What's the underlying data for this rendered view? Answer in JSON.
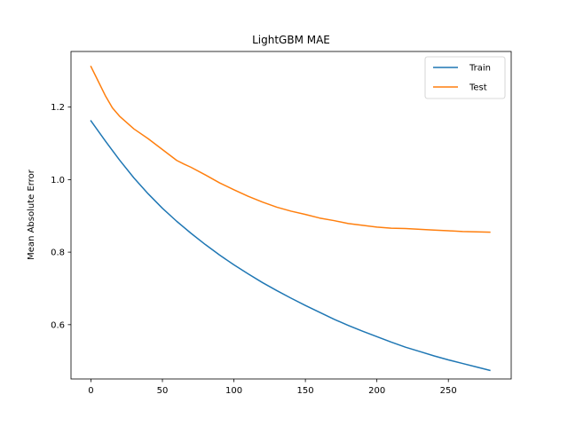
{
  "chart_data": {
    "type": "line",
    "title": "LightGBM MAE",
    "xlabel": "",
    "ylabel": "Mean Absolute Error",
    "xlim": [
      -13.95,
      293.95
    ],
    "ylim": [
      0.4503,
      1.3534
    ],
    "xticks": [
      0,
      50,
      100,
      150,
      200,
      250
    ],
    "yticks": [
      0.6,
      0.8,
      1.0,
      1.2
    ],
    "xtick_labels": [
      "0",
      "50",
      "100",
      "150",
      "200",
      "250"
    ],
    "ytick_labels": [
      "0.6",
      "0.8",
      "1.0",
      "1.2"
    ],
    "grid": false,
    "legend_position": "top-right",
    "series": [
      {
        "name": "Train",
        "color": "#1f77b4",
        "x": [
          0,
          10,
          20,
          30,
          40,
          50,
          60,
          70,
          80,
          90,
          100,
          110,
          120,
          130,
          140,
          150,
          160,
          170,
          180,
          190,
          200,
          210,
          220,
          230,
          240,
          250,
          260,
          270,
          279
        ],
        "y": [
          1.162,
          1.107,
          1.054,
          1.005,
          0.961,
          0.921,
          0.885,
          0.852,
          0.821,
          0.792,
          0.765,
          0.74,
          0.716,
          0.694,
          0.673,
          0.653,
          0.634,
          0.615,
          0.598,
          0.582,
          0.567,
          0.552,
          0.538,
          0.526,
          0.514,
          0.503,
          0.493,
          0.483,
          0.474
        ]
      },
      {
        "name": "Test",
        "color": "#ff7f0e",
        "x": [
          0,
          5,
          10,
          15,
          20,
          30,
          40,
          50,
          60,
          65,
          70,
          80,
          90,
          100,
          110,
          120,
          130,
          140,
          150,
          160,
          170,
          180,
          190,
          200,
          210,
          220,
          230,
          240,
          250,
          260,
          270,
          279
        ],
        "y": [
          1.312,
          1.272,
          1.232,
          1.198,
          1.175,
          1.14,
          1.113,
          1.083,
          1.053,
          1.043,
          1.034,
          1.013,
          0.991,
          0.972,
          0.954,
          0.938,
          0.924,
          0.913,
          0.904,
          0.894,
          0.887,
          0.879,
          0.874,
          0.869,
          0.866,
          0.865,
          0.863,
          0.861,
          0.859,
          0.857,
          0.856,
          0.855
        ]
      }
    ]
  }
}
